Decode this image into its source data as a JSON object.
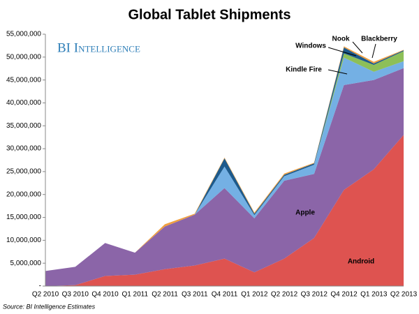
{
  "chart_data": {
    "type": "stacked-area",
    "title": "Global Tablet Shipments",
    "logo": "BI Intelligence",
    "source": "Source: BI Intelligence Estimates",
    "categories": [
      "Q2 2010",
      "Q3 2010",
      "Q4 2010",
      "Q1 2011",
      "Q2 2011",
      "Q3 2011",
      "Q4 2011",
      "Q1 2012",
      "Q2 2012",
      "Q3 2012",
      "Q4 2012",
      "Q1 2013",
      "Q2 2013"
    ],
    "series": [
      {
        "name": "Android",
        "color": "#de5350",
        "values": [
          0,
          200000,
          2200000,
          2500000,
          3700000,
          4500000,
          6000000,
          3000000,
          6000000,
          10500000,
          21000000,
          25500000,
          33000000
        ]
      },
      {
        "name": "Apple",
        "color": "#8b65a8",
        "values": [
          3300000,
          4000000,
          7200000,
          4800000,
          9300000,
          11100000,
          15400000,
          11800000,
          17000000,
          14000000,
          22900000,
          19500000,
          14600000
        ]
      },
      {
        "name": "Kindle Fire",
        "color": "#74b0e4",
        "values": [
          0,
          0,
          0,
          0,
          0,
          0,
          4700000,
          700000,
          1000000,
          2000000,
          6000000,
          1800000,
          1500000
        ]
      },
      {
        "name": "Windows",
        "color": "#8dbf58",
        "values": [
          0,
          0,
          0,
          0,
          0,
          0,
          0,
          0,
          0,
          0,
          900000,
          1500000,
          2200000
        ]
      },
      {
        "name": "Nook",
        "color": "#1d5a8c",
        "values": [
          0,
          0,
          0,
          0,
          0,
          0,
          1800000,
          300000,
          300000,
          300000,
          1300000,
          300000,
          200000
        ]
      },
      {
        "name": "Blackberry",
        "color": "#f0a040",
        "values": [
          0,
          0,
          0,
          0,
          500000,
          200000,
          150000,
          250000,
          260000,
          130000,
          250000,
          370000,
          100000
        ]
      }
    ],
    "ylim": [
      0,
      55000000
    ],
    "yticks": [
      {
        "value": 0,
        "label": "-"
      },
      {
        "value": 5000000,
        "label": "5,000,000"
      },
      {
        "value": 10000000,
        "label": "10,000,000"
      },
      {
        "value": 15000000,
        "label": "15,000,000"
      },
      {
        "value": 20000000,
        "label": "20,000,000"
      },
      {
        "value": 25000000,
        "label": "25,000,000"
      },
      {
        "value": 30000000,
        "label": "30,000,000"
      },
      {
        "value": 35000000,
        "label": "35,000,000"
      },
      {
        "value": 40000000,
        "label": "40,000,000"
      },
      {
        "value": 45000000,
        "label": "45,000,000"
      },
      {
        "value": 50000000,
        "label": "50,000,000"
      },
      {
        "value": 55000000,
        "label": "55,000,000"
      }
    ],
    "grid": false
  }
}
